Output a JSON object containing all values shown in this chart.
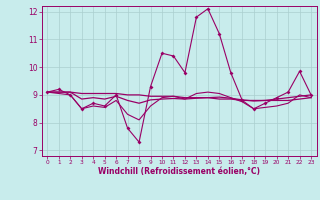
{
  "xlabel": "Windchill (Refroidissement éolien,°C)",
  "xlim": [
    -0.5,
    23.5
  ],
  "ylim": [
    6.8,
    12.2
  ],
  "yticks": [
    7,
    8,
    9,
    10,
    11,
    12
  ],
  "xticks": [
    0,
    1,
    2,
    3,
    4,
    5,
    6,
    7,
    8,
    9,
    10,
    11,
    12,
    13,
    14,
    15,
    16,
    17,
    18,
    19,
    20,
    21,
    22,
    23
  ],
  "background_color": "#c8ecec",
  "grid_color": "#aacfcf",
  "line_color": "#990066",
  "line1_y": [
    9.1,
    9.2,
    9.0,
    8.5,
    8.7,
    8.6,
    9.0,
    7.8,
    7.3,
    9.3,
    10.5,
    10.4,
    9.8,
    11.8,
    12.1,
    11.2,
    9.8,
    8.8,
    8.5,
    8.7,
    8.9,
    9.1,
    9.85,
    9.0
  ],
  "line2_y": [
    9.1,
    9.1,
    9.1,
    9.05,
    9.05,
    9.05,
    9.05,
    9.0,
    9.0,
    8.95,
    8.95,
    8.95,
    8.9,
    8.9,
    8.9,
    8.85,
    8.85,
    8.8,
    8.8,
    8.8,
    8.8,
    8.8,
    8.85,
    8.9
  ],
  "line3_y": [
    9.1,
    9.1,
    9.1,
    8.85,
    8.9,
    8.85,
    8.95,
    8.8,
    8.7,
    8.82,
    8.85,
    8.87,
    8.85,
    8.88,
    8.9,
    8.92,
    8.88,
    8.82,
    8.78,
    8.8,
    8.85,
    8.9,
    8.95,
    9.0
  ],
  "line4_y": [
    9.1,
    9.05,
    9.0,
    8.5,
    8.6,
    8.55,
    8.8,
    8.3,
    8.1,
    8.6,
    8.9,
    8.95,
    8.85,
    9.05,
    9.1,
    9.05,
    8.9,
    8.75,
    8.5,
    8.55,
    8.6,
    8.7,
    9.0,
    8.9
  ],
  "xlabel_fontsize": 5.5,
  "ylabel_fontsize": 5.5,
  "xtick_fontsize": 4.2,
  "ytick_fontsize": 5.5
}
